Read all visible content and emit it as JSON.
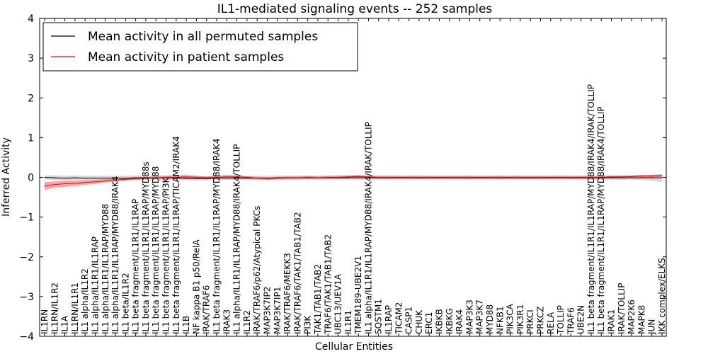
{
  "chart_data": {
    "type": "line",
    "title": "IL1-mediated signaling events -- 252 samples",
    "xlabel": "Cellular Entities",
    "ylabel": "Inferred Activity",
    "ylim": [
      -4,
      4
    ],
    "yticks": [
      "4",
      "3",
      "2",
      "1",
      "0",
      "−1",
      "−2",
      "−3",
      "−4"
    ],
    "legend": [
      {
        "label": "Mean activity in all permuted samples",
        "color": "#000000"
      },
      {
        "label": "Mean activity in patient samples",
        "color": "#ff0000"
      }
    ],
    "categories": [
      "IL1RN",
      "IL1RN/IL1R2",
      "IL1A",
      "IL1RN/IL1R1",
      "IL1 alpha/IL1R2",
      "IL1 alpha/IL1R1/IL1RAP",
      "IL1 alpha/IL1R1/IL1RAP/MYD88",
      "IL1 alpha/IL1R1/IL1RAP/MYD88/IRAK4",
      "IL1 beta/IL1R2",
      "IL1 beta fragment/IL1R1/IL1RAP",
      "IL1 beta fragment/IL1R1/IL1RAP/MYD88s",
      "IL1 beta fragment/IL1R1/IL1RAP/MYD88",
      "IL1 beta fragment/IL1R1/IL1RAP/PI3K",
      "IL1 beta fragment/IL1R1/IL1RAP/TICAM2/IRAK4",
      "IL1B",
      "NF kappa B1 p50/RelA",
      "IRAK/TRAF6",
      "IL1 beta fragment/IL1R1/IL1RAP/MYD88/IRAK4",
      "IRAK3",
      "IL1 alpha/IL1R1/IL1RAP/MYD88/IRAK4/TOLLIP",
      "IL1R2",
      "IRAK/TRAF6/p62/Atypical PKCs",
      "MAP3K7IP2",
      "MAP3K7IP1",
      "IRAK/TRAF6/MEKK3",
      "IRAK/TRAF6/TAK1/TAB1/TAB2",
      "PI3K",
      "TAK1/TAB1/TAB2",
      "TRAF6/TAK1/TAB1/TAB2",
      "UBC13/UEV1A",
      "IL1R1",
      "TMEM189-UBE2V1",
      "IL1 alpha/IL1R1/IL1RAP/MYD88/IRAK4/IRAK/TOLLIP",
      "SQSTM1",
      "IL1RAP",
      "TICAM2",
      "CASP1",
      "CHUK",
      "ERC1",
      "IKBKB",
      "IKBKG",
      "IRAK4",
      "MAP3K3",
      "MAP3K7",
      "MYD88",
      "NFKB1",
      "PIK3CA",
      "PIK3R1",
      "PRKCI",
      "PRKCZ",
      "RELA",
      "TOLLIP",
      "TRAF6",
      "UBE2N",
      "IL1 beta fragment/IL1R1/IL1RAP/MYD88/IRAK4/IRAK/TOLLIP",
      "IL1 beta fragment/IL1R1/IL1RAP/MYD88/IRAK4/TOLLIP",
      "IRAK1",
      "IRAK/TOLLIP",
      "MAP2K6",
      "MAPK8",
      "JUN",
      "IKK complex/ELKS"
    ],
    "series": [
      {
        "name": "Mean activity in all permuted samples",
        "color": "#000000",
        "values": [
          0.0,
          -0.01,
          -0.02,
          -0.01,
          -0.02,
          -0.02,
          -0.02,
          -0.02,
          -0.02,
          -0.01,
          -0.01,
          -0.01,
          -0.01,
          -0.01,
          -0.03,
          -0.03,
          -0.03,
          -0.02,
          -0.02,
          -0.02,
          -0.02,
          -0.02,
          -0.02,
          -0.01,
          -0.01,
          -0.01,
          -0.01,
          -0.01,
          -0.01,
          -0.01,
          -0.01,
          -0.01,
          -0.01,
          -0.01,
          -0.01,
          -0.01,
          -0.01,
          -0.01,
          -0.01,
          -0.01,
          -0.01,
          -0.01,
          -0.01,
          -0.01,
          -0.01,
          -0.01,
          -0.01,
          -0.01,
          -0.01,
          -0.01,
          -0.01,
          -0.01,
          -0.01,
          -0.01,
          -0.01,
          -0.01,
          -0.01,
          -0.01,
          -0.01,
          -0.01,
          -0.01,
          -0.01
        ],
        "band_lower": [
          -0.05,
          -0.07,
          -0.07,
          -0.07,
          -0.07,
          -0.07,
          -0.07,
          -0.07,
          -0.07,
          -0.07,
          -0.07,
          -0.07,
          -0.07,
          -0.07,
          -0.08,
          -0.08,
          -0.08,
          -0.07,
          -0.07,
          -0.07,
          -0.07,
          -0.07,
          -0.07,
          -0.07,
          -0.06,
          -0.06,
          -0.06,
          -0.06,
          -0.06,
          -0.06,
          -0.06,
          -0.06,
          -0.06,
          -0.06,
          -0.06,
          -0.06,
          -0.06,
          -0.06,
          -0.06,
          -0.06,
          -0.06,
          -0.06,
          -0.06,
          -0.06,
          -0.06,
          -0.06,
          -0.06,
          -0.06,
          -0.06,
          -0.06,
          -0.06,
          -0.06,
          -0.06,
          -0.06,
          -0.06,
          -0.06,
          -0.06,
          -0.06,
          -0.06,
          -0.07,
          -0.09,
          -0.12
        ],
        "band_upper": [
          0.05,
          0.05,
          0.04,
          0.05,
          0.04,
          0.04,
          0.04,
          0.04,
          0.04,
          0.05,
          0.05,
          0.05,
          0.05,
          0.05,
          0.03,
          0.03,
          0.03,
          0.04,
          0.04,
          0.04,
          0.04,
          0.04,
          0.04,
          0.05,
          0.05,
          0.05,
          0.05,
          0.05,
          0.05,
          0.05,
          0.05,
          0.05,
          0.05,
          0.05,
          0.05,
          0.05,
          0.05,
          0.05,
          0.05,
          0.05,
          0.05,
          0.05,
          0.05,
          0.05,
          0.05,
          0.05,
          0.05,
          0.05,
          0.05,
          0.05,
          0.05,
          0.05,
          0.05,
          0.05,
          0.05,
          0.05,
          0.05,
          0.05,
          0.05,
          0.06,
          0.07,
          0.08
        ]
      },
      {
        "name": "Mean activity in patient samples",
        "color": "#ff0000",
        "values": [
          -0.22,
          -0.18,
          -0.16,
          -0.15,
          -0.13,
          -0.11,
          -0.09,
          -0.07,
          -0.05,
          -0.03,
          -0.02,
          -0.01,
          0.0,
          0.0,
          0.01,
          0.0,
          -0.01,
          0.0,
          0.01,
          0.01,
          0.0,
          -0.02,
          -0.03,
          -0.02,
          -0.01,
          -0.01,
          0.0,
          -0.01,
          0.0,
          0.0,
          0.01,
          0.02,
          0.01,
          0.0,
          0.0,
          0.0,
          0.0,
          0.0,
          0.0,
          0.0,
          0.0,
          0.0,
          0.0,
          0.0,
          0.0,
          0.0,
          0.0,
          0.0,
          0.0,
          0.0,
          0.0,
          0.0,
          0.0,
          0.0,
          0.0,
          0.0,
          0.01,
          0.01,
          0.02,
          0.03,
          0.03,
          0.04
        ],
        "band_lower": [
          -0.32,
          -0.26,
          -0.24,
          -0.22,
          -0.19,
          -0.16,
          -0.13,
          -0.11,
          -0.08,
          -0.06,
          -0.05,
          -0.04,
          -0.03,
          -0.04,
          -0.03,
          -0.03,
          -0.04,
          -0.03,
          -0.02,
          -0.02,
          -0.03,
          -0.05,
          -0.06,
          -0.05,
          -0.04,
          -0.04,
          -0.03,
          -0.04,
          -0.03,
          -0.03,
          -0.02,
          -0.02,
          -0.02,
          -0.03,
          -0.03,
          -0.03,
          -0.03,
          -0.03,
          -0.03,
          -0.03,
          -0.03,
          -0.03,
          -0.03,
          -0.03,
          -0.03,
          -0.03,
          -0.03,
          -0.03,
          -0.03,
          -0.03,
          -0.03,
          -0.03,
          -0.03,
          -0.03,
          -0.03,
          -0.03,
          -0.02,
          -0.02,
          -0.01,
          0.0,
          0.0,
          0.01
        ],
        "band_upper": [
          -0.12,
          -0.1,
          -0.08,
          -0.08,
          -0.07,
          -0.06,
          -0.05,
          -0.03,
          -0.02,
          0.0,
          0.01,
          0.02,
          0.04,
          0.05,
          0.06,
          0.04,
          0.02,
          0.04,
          0.06,
          0.05,
          0.03,
          0.01,
          0.0,
          0.01,
          0.02,
          0.02,
          0.03,
          0.02,
          0.03,
          0.04,
          0.05,
          0.06,
          0.04,
          0.03,
          0.03,
          0.03,
          0.03,
          0.03,
          0.03,
          0.03,
          0.03,
          0.03,
          0.03,
          0.03,
          0.03,
          0.03,
          0.03,
          0.03,
          0.03,
          0.03,
          0.03,
          0.03,
          0.03,
          0.03,
          0.03,
          0.03,
          0.04,
          0.04,
          0.05,
          0.06,
          0.06,
          0.07
        ]
      }
    ]
  }
}
